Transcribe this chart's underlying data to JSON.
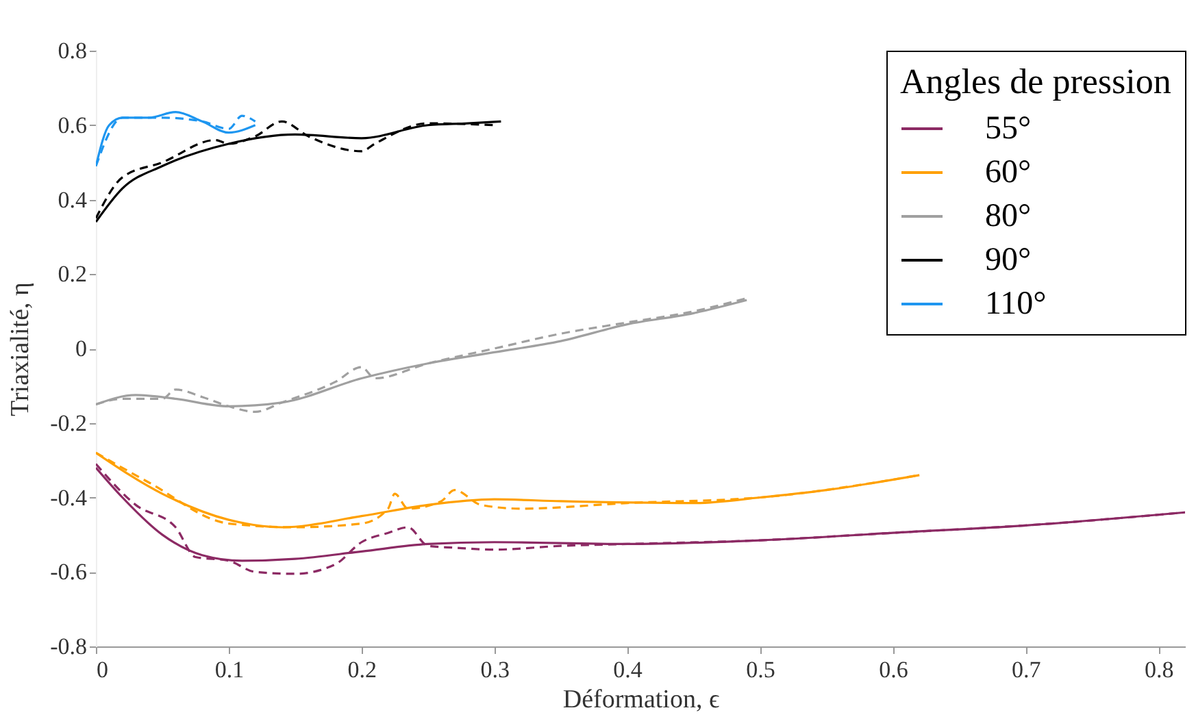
{
  "chart_data": {
    "type": "line",
    "xlabel": "Déformation, ϵ",
    "ylabel": "Triaxialité, η",
    "legend_title": "Angles de pression",
    "legend": "top right",
    "grid": false,
    "xlim": [
      0,
      0.82
    ],
    "ylim": [
      -0.8,
      0.8
    ],
    "xticks": [
      0,
      0.1,
      0.2,
      0.3,
      0.4,
      0.5,
      0.6,
      0.7,
      0.8
    ],
    "yticks": [
      -0.8,
      -0.6,
      -0.4,
      -0.2,
      0,
      0.2,
      0.4,
      0.6,
      0.8
    ],
    "series": [
      {
        "name": "55°",
        "color": "#8c2a64",
        "line_style": "solid",
        "x": [
          0,
          0.02,
          0.05,
          0.08,
          0.11,
          0.15,
          0.2,
          0.25,
          0.3,
          0.4,
          0.5,
          0.6,
          0.7,
          0.82
        ],
        "values": [
          -0.32,
          -0.4,
          -0.5,
          -0.555,
          -0.57,
          -0.565,
          -0.545,
          -0.525,
          -0.52,
          -0.525,
          -0.515,
          -0.495,
          -0.475,
          -0.44
        ]
      },
      {
        "name": "60°",
        "color": "#ffa000",
        "line_style": "solid",
        "x": [
          0,
          0.05,
          0.1,
          0.14,
          0.2,
          0.25,
          0.3,
          0.35,
          0.45,
          0.5,
          0.55,
          0.62
        ],
        "values": [
          -0.28,
          -0.39,
          -0.46,
          -0.48,
          -0.45,
          -0.42,
          -0.405,
          -0.41,
          -0.415,
          -0.4,
          -0.38,
          -0.34
        ]
      },
      {
        "name": "80°",
        "color": "#a0a0a0",
        "line_style": "solid",
        "x": [
          0,
          0.03,
          0.06,
          0.1,
          0.14,
          0.2,
          0.25,
          0.3,
          0.35,
          0.4,
          0.45,
          0.49
        ],
        "values": [
          -0.15,
          -0.125,
          -0.135,
          -0.155,
          -0.145,
          -0.08,
          -0.04,
          -0.01,
          0.02,
          0.065,
          0.095,
          0.13
        ]
      },
      {
        "name": "90°",
        "color": "#000000",
        "line_style": "solid",
        "x": [
          0,
          0.02,
          0.05,
          0.1,
          0.15,
          0.2,
          0.25,
          0.28,
          0.305
        ],
        "values": [
          0.34,
          0.43,
          0.49,
          0.55,
          0.575,
          0.565,
          0.6,
          0.605,
          0.61
        ]
      },
      {
        "name": "110°",
        "color": "#1e96f0",
        "line_style": "solid",
        "x": [
          0,
          0.01,
          0.02,
          0.04,
          0.06,
          0.08,
          0.1,
          0.12
        ],
        "values": [
          0.49,
          0.6,
          0.62,
          0.62,
          0.635,
          0.61,
          0.58,
          0.6
        ]
      },
      {
        "color": "#8c2a64",
        "line_style": "dashed",
        "x": [
          0,
          0.03,
          0.06,
          0.075,
          0.1,
          0.12,
          0.15,
          0.18,
          0.2,
          0.22,
          0.235,
          0.25,
          0.27,
          0.3,
          0.35,
          0.4,
          0.5,
          0.6,
          0.7,
          0.82
        ],
        "values": [
          -0.31,
          -0.42,
          -0.48,
          -0.56,
          -0.57,
          -0.6,
          -0.605,
          -0.58,
          -0.52,
          -0.495,
          -0.48,
          -0.53,
          -0.535,
          -0.54,
          -0.53,
          -0.525,
          -0.515,
          -0.495,
          -0.475,
          -0.44
        ]
      },
      {
        "color": "#ffa000",
        "line_style": "dashed",
        "x": [
          0,
          0.04,
          0.1,
          0.15,
          0.2,
          0.22,
          0.225,
          0.235,
          0.26,
          0.27,
          0.29,
          0.32,
          0.4,
          0.5,
          0.62
        ],
        "values": [
          -0.28,
          -0.36,
          -0.47,
          -0.48,
          -0.47,
          -0.43,
          -0.39,
          -0.43,
          -0.41,
          -0.38,
          -0.42,
          -0.43,
          -0.415,
          -0.4,
          -0.34
        ]
      },
      {
        "color": "#a0a0a0",
        "line_style": "dashed",
        "x": [
          0,
          0.02,
          0.05,
          0.06,
          0.08,
          0.1,
          0.12,
          0.14,
          0.18,
          0.2,
          0.21,
          0.25,
          0.3,
          0.35,
          0.4,
          0.45,
          0.49
        ],
        "values": [
          -0.15,
          -0.135,
          -0.135,
          -0.11,
          -0.13,
          -0.155,
          -0.17,
          -0.145,
          -0.09,
          -0.05,
          -0.08,
          -0.04,
          0,
          0.04,
          0.07,
          0.1,
          0.135
        ]
      },
      {
        "color": "#000000",
        "line_style": "dashed",
        "x": [
          0,
          0.02,
          0.05,
          0.09,
          0.1,
          0.12,
          0.14,
          0.16,
          0.2,
          0.21,
          0.25,
          0.3
        ],
        "values": [
          0.35,
          0.46,
          0.5,
          0.56,
          0.55,
          0.57,
          0.61,
          0.57,
          0.53,
          0.55,
          0.605,
          0.6
        ]
      },
      {
        "color": "#1e96f0",
        "line_style": "dashed",
        "x": [
          0,
          0.02,
          0.05,
          0.08,
          0.1,
          0.11,
          0.12
        ],
        "values": [
          0.49,
          0.62,
          0.62,
          0.61,
          0.59,
          0.625,
          0.61
        ]
      }
    ]
  }
}
